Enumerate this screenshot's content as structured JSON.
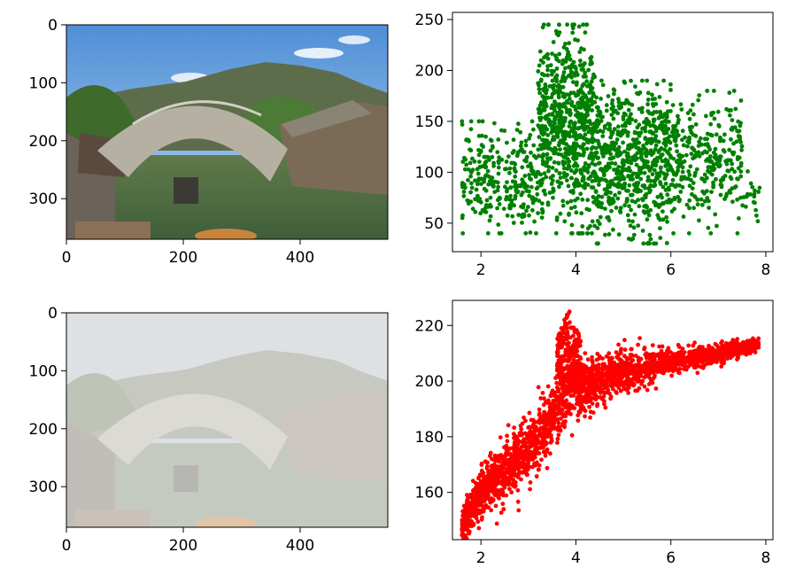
{
  "chart_data": [
    {
      "panel": "top-left",
      "type": "image",
      "x_ticks": [
        0,
        200,
        400
      ],
      "y_ticks": [
        0,
        100,
        200,
        300
      ],
      "xlim": [
        0,
        550
      ],
      "ylim": [
        370,
        0
      ],
      "content": "clear-photo",
      "colors": {
        "sky": "#7fb2e6",
        "mountain": "#5b6a4a",
        "water": "#4f6b45",
        "bridge": "#a8a294",
        "trees": "#3e6a2c"
      }
    },
    {
      "panel": "top-right",
      "type": "scatter",
      "color": "#008000",
      "x_ticks": [
        2,
        4,
        6,
        8
      ],
      "y_ticks": [
        50,
        100,
        150,
        200,
        250
      ],
      "xlim": [
        1.4,
        8.15
      ],
      "ylim": [
        22,
        257
      ],
      "clusters": [
        {
          "x": [
            1.6,
            3.2
          ],
          "y": [
            40,
            150
          ],
          "n": 280
        },
        {
          "x": [
            3.2,
            4.4
          ],
          "y": [
            40,
            245
          ],
          "n": 700
        },
        {
          "x": [
            4.4,
            6.0
          ],
          "y": [
            30,
            190
          ],
          "n": 650
        },
        {
          "x": [
            6.0,
            7.5
          ],
          "y": [
            40,
            180
          ],
          "n": 300
        },
        {
          "x": [
            7.5,
            7.9
          ],
          "y": [
            40,
            110
          ],
          "n": 20
        }
      ]
    },
    {
      "panel": "bottom-left",
      "type": "image",
      "x_ticks": [
        0,
        200,
        400
      ],
      "y_ticks": [
        0,
        100,
        200,
        300
      ],
      "xlim": [
        0,
        550
      ],
      "ylim": [
        370,
        0
      ],
      "content": "hazy-photo",
      "colors": {
        "sky": "#d4dbe2",
        "mountain": "#a7ab9e",
        "water": "#a2ab9b",
        "bridge": "#c9c7c1",
        "trees": "#9fa893",
        "haze": "#e6e6e3"
      }
    },
    {
      "panel": "bottom-right",
      "type": "scatter",
      "color": "#ff0000",
      "x_ticks": [
        2,
        4,
        6,
        8
      ],
      "y_ticks": [
        160,
        180,
        200,
        220
      ],
      "xlim": [
        1.4,
        8.15
      ],
      "ylim": [
        143,
        229
      ],
      "trend": [
        {
          "x": 1.6,
          "y": 148,
          "spread": 5
        },
        {
          "x": 2.0,
          "y": 160,
          "spread": 9
        },
        {
          "x": 2.5,
          "y": 168,
          "spread": 10
        },
        {
          "x": 3.0,
          "y": 175,
          "spread": 10
        },
        {
          "x": 3.5,
          "y": 186,
          "spread": 10
        },
        {
          "x": 3.8,
          "y": 198,
          "spread": 12
        },
        {
          "x": 4.0,
          "y": 197,
          "spread": 9
        },
        {
          "x": 4.5,
          "y": 200,
          "spread": 7
        },
        {
          "x": 5.0,
          "y": 203,
          "spread": 6
        },
        {
          "x": 6.0,
          "y": 207,
          "spread": 4
        },
        {
          "x": 7.0,
          "y": 210,
          "spread": 3
        },
        {
          "x": 7.8,
          "y": 213,
          "spread": 2
        }
      ],
      "peak": {
        "x": [
          3.6,
          4.1
        ],
        "y": [
          200,
          226
        ]
      },
      "n": 2600
    }
  ]
}
